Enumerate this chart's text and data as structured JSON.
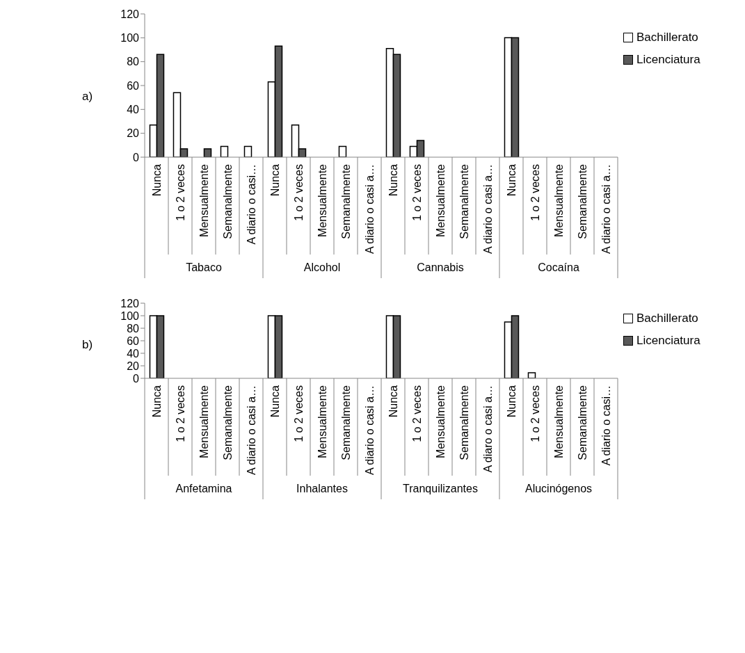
{
  "chart_data": [
    {
      "type": "bar",
      "title": "a)",
      "categories": [
        "Nunca",
        "1 o 2 veces",
        "Mensualmente",
        "Semanalmente",
        "A diario o casi…",
        "Nunca",
        "1 o 2 veces",
        "Mensualmente",
        "Semanalmente",
        "A diario o casi a…",
        "Nunca",
        "1 o 2 veces",
        "Mensualmente",
        "Semanalmente",
        "A diario o casi a…",
        "Nunca",
        "1 o 2 veces",
        "Mensualmente",
        "Semanalmente",
        "A diario o casi a…"
      ],
      "annotations": [
        "Tabaco",
        "Alcohol",
        "Cannabis",
        "Cocaína"
      ],
      "series": [
        {
          "name": "Bachillerato",
          "color": "#ffffff",
          "values": [
            27,
            54,
            0,
            9,
            9,
            63,
            27,
            0,
            9,
            0,
            91,
            9,
            0,
            0,
            0,
            100,
            0,
            0,
            0,
            0
          ]
        },
        {
          "name": "Licenciatura",
          "color": "#595959",
          "values": [
            86,
            7,
            7,
            0,
            0,
            93,
            7,
            0,
            0,
            0,
            86,
            14,
            0,
            0,
            0,
            100,
            0,
            0,
            0,
            0
          ]
        }
      ],
      "ylim": [
        0,
        120
      ],
      "yticks": [
        0,
        20,
        40,
        60,
        80,
        100,
        120
      ],
      "legend": "right"
    },
    {
      "type": "bar",
      "title": "b)",
      "categories": [
        "Nunca",
        "1 o 2 veces",
        "Mensualmente",
        "Semanalmente",
        "A diario o casi a…",
        "Nunca",
        "1 o 2 veces",
        "Mensualmente",
        "Semanalmente",
        "A diario o casi a…",
        "Nunca",
        "1 o 2 veces",
        "Mensualmente",
        "Semanalmente",
        "A diaro o casi a…",
        "Nunca",
        "1 o 2 veces",
        "Mensualmente",
        "Semanalmente",
        "A diario o casi…"
      ],
      "annotations": [
        "Anfetamina",
        "Inhalantes",
        "Tranquilizantes",
        "Alucinógenos"
      ],
      "series": [
        {
          "name": "Bachillerato",
          "color": "#ffffff",
          "values": [
            100,
            0,
            0,
            0,
            0,
            100,
            0,
            0,
            0,
            0,
            100,
            0,
            0,
            0,
            0,
            90,
            9,
            0,
            0,
            0
          ]
        },
        {
          "name": "Licenciatura",
          "color": "#595959",
          "values": [
            100,
            0,
            0,
            0,
            0,
            100,
            0,
            0,
            0,
            0,
            100,
            0,
            0,
            0,
            0,
            100,
            0,
            0,
            0,
            0
          ]
        }
      ],
      "ylim": [
        0,
        120
      ],
      "yticks": [
        0,
        20,
        40,
        60,
        80,
        100,
        120
      ],
      "legend": "right"
    }
  ]
}
